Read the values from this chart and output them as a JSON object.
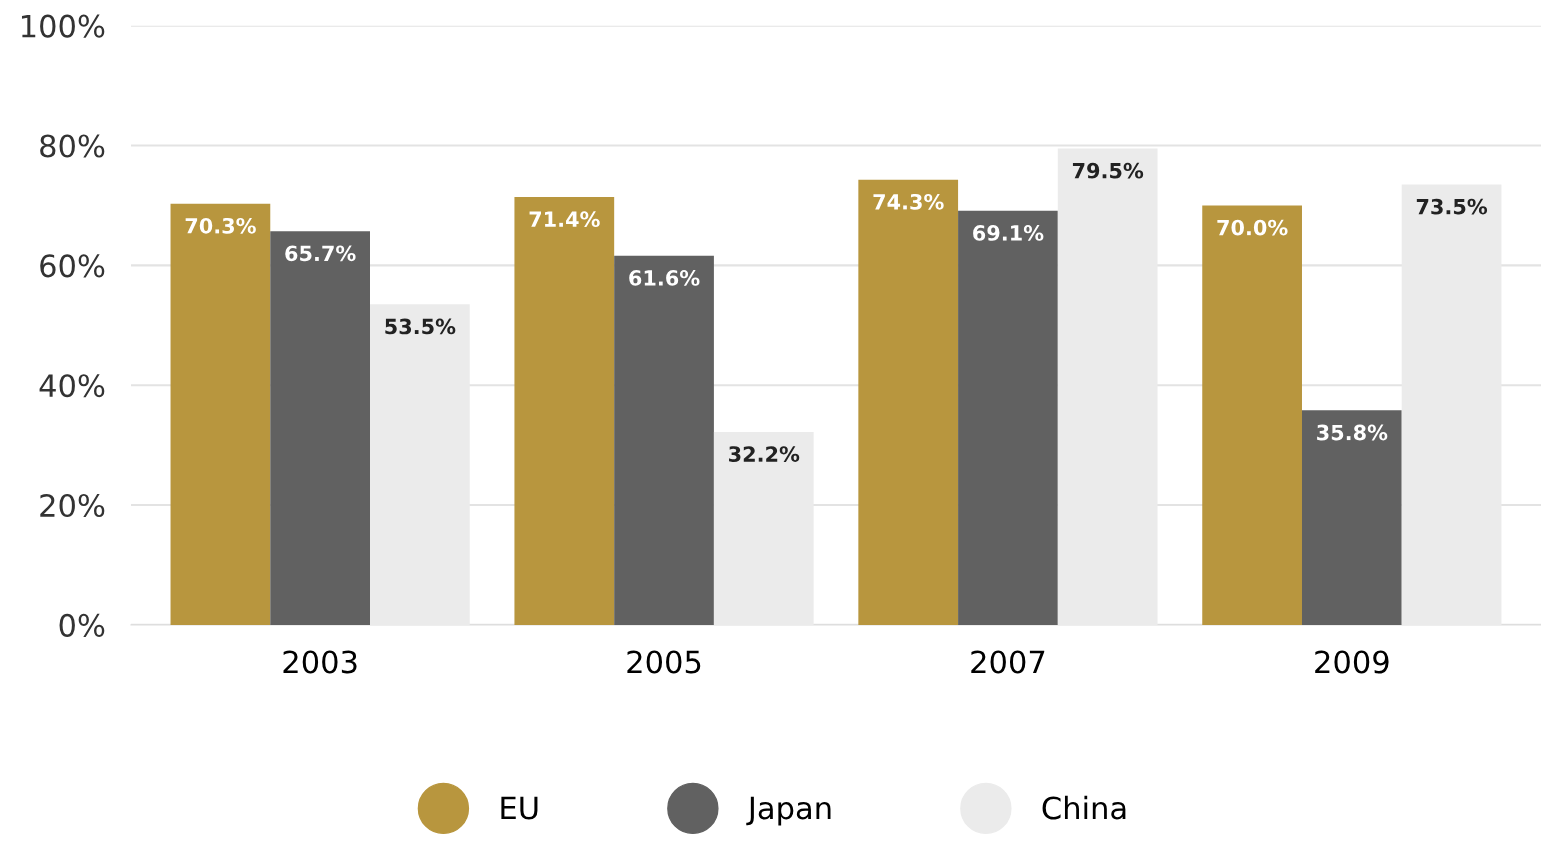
{
  "chart_data": {
    "type": "bar",
    "categories": [
      "2003",
      "2005",
      "2007",
      "2009"
    ],
    "series": [
      {
        "name": "EU",
        "color": "#b8963e",
        "values": [
          70.3,
          71.4,
          74.3,
          70.0
        ],
        "value_labels": [
          "70.3%",
          "71.4%",
          "74.3%",
          "70.0%"
        ]
      },
      {
        "name": "Japan",
        "color": "#616161",
        "values": [
          65.7,
          61.6,
          69.1,
          35.8
        ],
        "value_labels": [
          "65.7%",
          "61.6%",
          "69.1%",
          "35.8%"
        ]
      },
      {
        "name": "China",
        "color": "#ebebeb",
        "values": [
          53.5,
          32.2,
          79.5,
          73.5
        ],
        "value_labels": [
          "53.5%",
          "32.2%",
          "79.5%",
          "73.5%"
        ]
      }
    ],
    "ylim": [
      0,
      100
    ],
    "yticks": [
      {
        "value": 0,
        "label": "0%"
      },
      {
        "value": 20,
        "label": "20%"
      },
      {
        "value": 40,
        "label": "40%"
      },
      {
        "value": 60,
        "label": "60%"
      },
      {
        "value": 80,
        "label": "80%"
      },
      {
        "value": 100,
        "label": "100%"
      }
    ],
    "grid": "y",
    "legend": "bottom"
  }
}
